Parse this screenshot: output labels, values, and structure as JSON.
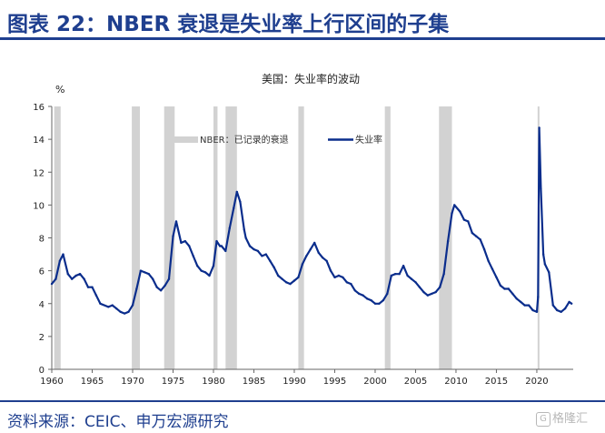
{
  "header": {
    "title": "图表 22：NBER 衰退是失业率上行区间的子集"
  },
  "footer": {
    "source": "资料来源：CEIC、申万宏源研究"
  },
  "watermark": {
    "text": "格隆汇"
  },
  "colors": {
    "brand": "#1f3f8f",
    "line": "#0a2d8c",
    "recession": "#d2d2d2",
    "axis": "#666666"
  },
  "chart_data": {
    "type": "line",
    "title": "美国：失业率的波动",
    "ylabel": "%",
    "xlabel": "",
    "xlim": [
      1960,
      2024.5
    ],
    "ylim": [
      0,
      16
    ],
    "x_ticks": [
      1960,
      1965,
      1970,
      1975,
      1980,
      1985,
      1990,
      1995,
      2000,
      2005,
      2010,
      2015,
      2020
    ],
    "y_ticks": [
      0,
      2,
      4,
      6,
      8,
      10,
      12,
      14,
      16
    ],
    "legend": {
      "position": "top-center",
      "recession_label": "NBER：已记录的衰退",
      "series_label": "失业率"
    },
    "recessions": [
      [
        1960.3,
        1961.1
      ],
      [
        1969.9,
        1970.9
      ],
      [
        1973.9,
        1975.2
      ],
      [
        1980.0,
        1980.5
      ],
      [
        1981.5,
        1982.9
      ],
      [
        1990.5,
        1991.2
      ],
      [
        2001.2,
        2001.9
      ],
      [
        2007.9,
        2009.5
      ],
      [
        2020.1,
        2020.3
      ]
    ],
    "series": [
      {
        "name": "失业率",
        "points": [
          [
            1960.0,
            5.2
          ],
          [
            1960.5,
            5.5
          ],
          [
            1961.0,
            6.6
          ],
          [
            1961.4,
            7.0
          ],
          [
            1962.0,
            5.8
          ],
          [
            1962.5,
            5.5
          ],
          [
            1963.0,
            5.7
          ],
          [
            1963.5,
            5.8
          ],
          [
            1964.0,
            5.5
          ],
          [
            1964.5,
            5.0
          ],
          [
            1965.0,
            5.0
          ],
          [
            1965.5,
            4.5
          ],
          [
            1966.0,
            4.0
          ],
          [
            1967.0,
            3.8
          ],
          [
            1967.5,
            3.9
          ],
          [
            1968.0,
            3.7
          ],
          [
            1968.5,
            3.5
          ],
          [
            1969.0,
            3.4
          ],
          [
            1969.5,
            3.5
          ],
          [
            1970.0,
            3.9
          ],
          [
            1970.5,
            4.9
          ],
          [
            1971.0,
            6.0
          ],
          [
            1971.5,
            5.9
          ],
          [
            1972.0,
            5.8
          ],
          [
            1972.5,
            5.5
          ],
          [
            1973.0,
            5.0
          ],
          [
            1973.5,
            4.8
          ],
          [
            1974.0,
            5.1
          ],
          [
            1974.5,
            5.5
          ],
          [
            1975.0,
            8.1
          ],
          [
            1975.4,
            9.0
          ],
          [
            1976.0,
            7.7
          ],
          [
            1976.5,
            7.8
          ],
          [
            1977.0,
            7.5
          ],
          [
            1977.5,
            6.9
          ],
          [
            1978.0,
            6.3
          ],
          [
            1978.5,
            6.0
          ],
          [
            1979.0,
            5.9
          ],
          [
            1979.5,
            5.7
          ],
          [
            1980.0,
            6.3
          ],
          [
            1980.4,
            7.8
          ],
          [
            1980.8,
            7.5
          ],
          [
            1981.0,
            7.5
          ],
          [
            1981.5,
            7.2
          ],
          [
            1982.0,
            8.6
          ],
          [
            1982.5,
            9.8
          ],
          [
            1982.9,
            10.8
          ],
          [
            1983.3,
            10.2
          ],
          [
            1983.8,
            8.5
          ],
          [
            1984.0,
            8.0
          ],
          [
            1984.5,
            7.5
          ],
          [
            1985.0,
            7.3
          ],
          [
            1985.5,
            7.2
          ],
          [
            1986.0,
            6.9
          ],
          [
            1986.5,
            7.0
          ],
          [
            1987.0,
            6.6
          ],
          [
            1987.5,
            6.2
          ],
          [
            1988.0,
            5.7
          ],
          [
            1988.5,
            5.5
          ],
          [
            1989.0,
            5.3
          ],
          [
            1989.5,
            5.2
          ],
          [
            1990.0,
            5.4
          ],
          [
            1990.5,
            5.6
          ],
          [
            1991.0,
            6.4
          ],
          [
            1991.5,
            6.9
          ],
          [
            1992.0,
            7.3
          ],
          [
            1992.5,
            7.7
          ],
          [
            1993.0,
            7.1
          ],
          [
            1993.5,
            6.8
          ],
          [
            1994.0,
            6.6
          ],
          [
            1994.5,
            6.0
          ],
          [
            1995.0,
            5.6
          ],
          [
            1995.5,
            5.7
          ],
          [
            1996.0,
            5.6
          ],
          [
            1996.5,
            5.3
          ],
          [
            1997.0,
            5.2
          ],
          [
            1997.5,
            4.8
          ],
          [
            1998.0,
            4.6
          ],
          [
            1998.5,
            4.5
          ],
          [
            1999.0,
            4.3
          ],
          [
            1999.5,
            4.2
          ],
          [
            2000.0,
            4.0
          ],
          [
            2000.5,
            4.0
          ],
          [
            2001.0,
            4.2
          ],
          [
            2001.5,
            4.6
          ],
          [
            2002.0,
            5.7
          ],
          [
            2002.5,
            5.8
          ],
          [
            2003.0,
            5.8
          ],
          [
            2003.5,
            6.3
          ],
          [
            2004.0,
            5.7
          ],
          [
            2004.5,
            5.5
          ],
          [
            2005.0,
            5.3
          ],
          [
            2005.5,
            5.0
          ],
          [
            2006.0,
            4.7
          ],
          [
            2006.5,
            4.5
          ],
          [
            2007.0,
            4.6
          ],
          [
            2007.5,
            4.7
          ],
          [
            2008.0,
            5.0
          ],
          [
            2008.5,
            5.8
          ],
          [
            2009.0,
            7.8
          ],
          [
            2009.5,
            9.5
          ],
          [
            2009.8,
            10.0
          ],
          [
            2010.5,
            9.6
          ],
          [
            2011.0,
            9.1
          ],
          [
            2011.5,
            9.0
          ],
          [
            2012.0,
            8.3
          ],
          [
            2012.5,
            8.1
          ],
          [
            2013.0,
            7.9
          ],
          [
            2013.5,
            7.3
          ],
          [
            2014.0,
            6.6
          ],
          [
            2014.5,
            6.1
          ],
          [
            2015.0,
            5.6
          ],
          [
            2015.5,
            5.1
          ],
          [
            2016.0,
            4.9
          ],
          [
            2016.5,
            4.9
          ],
          [
            2017.0,
            4.6
          ],
          [
            2017.5,
            4.3
          ],
          [
            2018.0,
            4.1
          ],
          [
            2018.5,
            3.9
          ],
          [
            2019.0,
            3.9
          ],
          [
            2019.5,
            3.6
          ],
          [
            2020.0,
            3.5
          ],
          [
            2020.15,
            4.4
          ],
          [
            2020.3,
            14.7
          ],
          [
            2020.5,
            11.0
          ],
          [
            2020.8,
            7.0
          ],
          [
            2021.0,
            6.4
          ],
          [
            2021.5,
            5.9
          ],
          [
            2022.0,
            3.9
          ],
          [
            2022.5,
            3.6
          ],
          [
            2023.0,
            3.5
          ],
          [
            2023.5,
            3.7
          ],
          [
            2024.0,
            4.1
          ],
          [
            2024.3,
            4.0
          ]
        ]
      }
    ]
  }
}
